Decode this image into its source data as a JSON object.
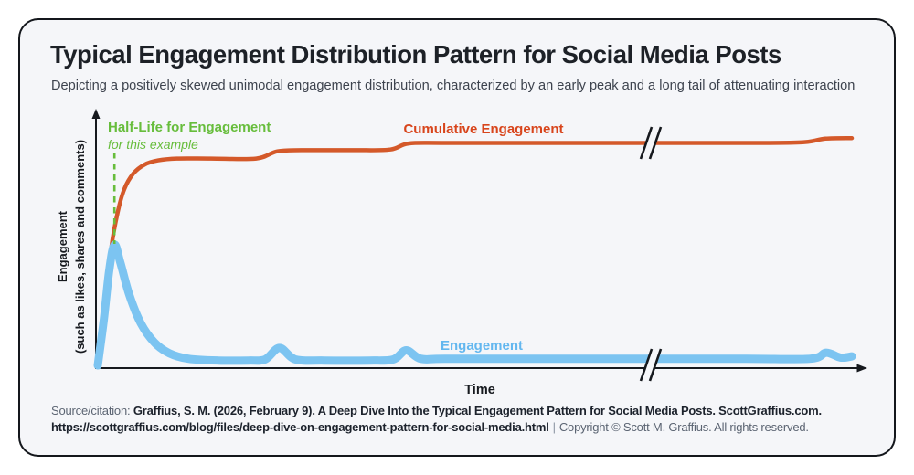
{
  "header": {
    "title": "Typical Engagement Distribution Pattern for Social Media Posts",
    "subtitle": "Depicting a positively skewed unimodal engagement distribution, characterized by an early peak and a long tail of attenuating interaction"
  },
  "chart_data": {
    "type": "line",
    "title": "Typical Engagement Distribution Pattern for Social Media Posts",
    "xlabel": "Time",
    "ylabel": "Engagement",
    "ylabel_sub": "(such as likes, shares and comments)",
    "x_axis": {
      "ticks": [],
      "axis_break": true,
      "axis_break_x": 0.73
    },
    "y_axis": {
      "ticks": [],
      "unit": "relative engagement (peak = 1.0)"
    },
    "grid": false,
    "legend": "inline-labels",
    "annotations": {
      "half_life": {
        "label": "Half-Life for Engagement",
        "sublabel": "for this example",
        "x": 0.022
      },
      "cumulative_label": "Cumulative Engagement",
      "engagement_label": "Engagement"
    },
    "colors": {
      "engagement_line": "#7CC4F1",
      "engagement_text": "#63B7EF",
      "cumulative_line": "#D4592A",
      "cumulative_text": "#D8451C",
      "half_life_green": "#67BD3C",
      "axis": "#16191e",
      "background": "#F5F6F9"
    },
    "series": [
      {
        "name": "Engagement",
        "color": "#7CC4F1",
        "width": 9,
        "points": [
          [
            0,
            0
          ],
          [
            0.008,
            0.38
          ],
          [
            0.015,
            0.78
          ],
          [
            0.022,
            1.0
          ],
          [
            0.03,
            0.85
          ],
          [
            0.042,
            0.58
          ],
          [
            0.057,
            0.35
          ],
          [
            0.075,
            0.19
          ],
          [
            0.095,
            0.1
          ],
          [
            0.12,
            0.055
          ],
          [
            0.16,
            0.04
          ],
          [
            0.2,
            0.04
          ],
          [
            0.222,
            0.05
          ],
          [
            0.241,
            0.145
          ],
          [
            0.262,
            0.05
          ],
          [
            0.3,
            0.04
          ],
          [
            0.36,
            0.04
          ],
          [
            0.392,
            0.05
          ],
          [
            0.409,
            0.125
          ],
          [
            0.428,
            0.055
          ],
          [
            0.46,
            0.055
          ],
          [
            0.58,
            0.055
          ],
          [
            0.72,
            0.055
          ],
          [
            0.86,
            0.055
          ],
          [
            0.945,
            0.055
          ],
          [
            0.966,
            0.105
          ],
          [
            0.985,
            0.065
          ],
          [
            1.0,
            0.075
          ]
        ]
      },
      {
        "name": "Cumulative Engagement",
        "color": "#D4592A",
        "width": 4.5,
        "points": [
          [
            0,
            0
          ],
          [
            0.006,
            0.3
          ],
          [
            0.012,
            0.64
          ],
          [
            0.018,
            0.98
          ],
          [
            0.026,
            1.26
          ],
          [
            0.035,
            1.46
          ],
          [
            0.047,
            1.59
          ],
          [
            0.062,
            1.665
          ],
          [
            0.08,
            1.7
          ],
          [
            0.105,
            1.715
          ],
          [
            0.15,
            1.715
          ],
          [
            0.21,
            1.715
          ],
          [
            0.238,
            1.775
          ],
          [
            0.27,
            1.785
          ],
          [
            0.34,
            1.785
          ],
          [
            0.388,
            1.79
          ],
          [
            0.412,
            1.84
          ],
          [
            0.46,
            1.845
          ],
          [
            0.58,
            1.845
          ],
          [
            0.72,
            1.845
          ],
          [
            0.87,
            1.845
          ],
          [
            0.935,
            1.85
          ],
          [
            0.965,
            1.88
          ],
          [
            1.0,
            1.885
          ]
        ]
      }
    ]
  },
  "footer": {
    "source_prefix": "Source/citation: ",
    "citation": "Graffius, S. M. (2026, February 9). A Deep Dive Into the Typical Engagement Pattern for Social Media Posts. ScottGraffius.com.",
    "url": "https://scottgraffius.com/blog/files/deep-dive-on-engagement-pattern-for-social-media.html",
    "separator": "|",
    "copyright": "Copyright © Scott M. Graffius. All rights reserved."
  }
}
